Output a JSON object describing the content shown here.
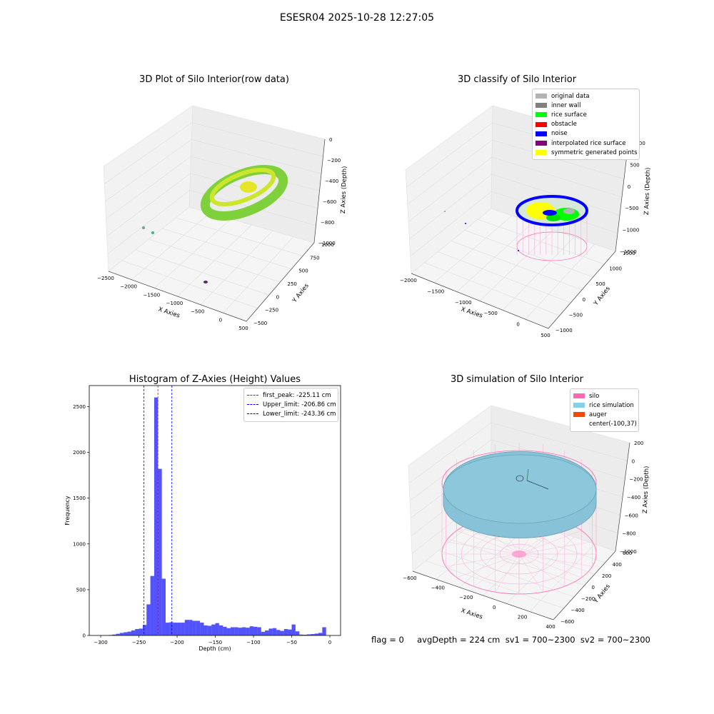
{
  "suptitle": "ESESR04 2025-10-28 12:27:05",
  "footer": "flag = 0     avgDepth = 224 cm  sv1 = 700~2300  sv2 = 700~2300",
  "panels": {
    "raw": {
      "title": "3D Plot of Silo Interior(row data)",
      "xlabel": "X Axies",
      "ylabel": "Y Axies",
      "zlabel": "Z Axies (Depth)",
      "xticks": [
        "−2500",
        "−2000",
        "−1500",
        "−1000",
        "−500",
        "0",
        "500"
      ],
      "yticks": [
        "−500",
        "−250",
        "0",
        "250",
        "500",
        "750",
        "1000"
      ],
      "zticks": [
        "0",
        "−200",
        "−400",
        "−600",
        "−800",
        "−1000"
      ]
    },
    "classify": {
      "title": "3D classify of Silo Interior",
      "xlabel": "X Axies",
      "ylabel": "Y Axies",
      "zlabel": "Z Axies (Depth)",
      "xticks": [
        "−2000",
        "−1500",
        "−1000",
        "−500",
        "0",
        "500"
      ],
      "yticks": [
        "−1000",
        "−500",
        "0",
        "500",
        "1000",
        "1500"
      ],
      "zticks": [
        "1000",
        "500",
        "0",
        "−500",
        "−1000",
        "−1500"
      ],
      "legend": [
        {
          "label": "original data",
          "color": "#b3b3b3"
        },
        {
          "label": "inner wall",
          "color": "#808080"
        },
        {
          "label": "rice surface",
          "color": "#00ff00"
        },
        {
          "label": "obstacle",
          "color": "#ff0000"
        },
        {
          "label": "noise",
          "color": "#0000ff"
        },
        {
          "label": "interpolated rice surface",
          "color": "#800080"
        },
        {
          "label": "symmetric generated points",
          "color": "#ffff00"
        }
      ]
    },
    "simulation": {
      "title": "3D simulation of Silo Interior",
      "xlabel": "X Axies",
      "ylabel": "Y Axies",
      "zlabel": "Z Axies (Depth)",
      "xticks": [
        "−600",
        "−400",
        "−200",
        "0",
        "200",
        "400"
      ],
      "yticks": [
        "−600",
        "−400",
        "−200",
        "0",
        "200",
        "400",
        "600"
      ],
      "zticks": [
        "200",
        "0",
        "−200",
        "−400",
        "−600",
        "−800",
        "−1000"
      ],
      "legend": [
        {
          "label": "silo",
          "color": "#ff69b4"
        },
        {
          "label": "rice simulation",
          "color": "#87ceeb"
        },
        {
          "label": "auger",
          "color": "#ff4500"
        },
        {
          "label": "center(-100,37)",
          "color": ""
        }
      ]
    }
  },
  "chart_data": {
    "type": "bar",
    "title": "Histogram of Z-Axies (Height) Values",
    "xlabel": "Depth (cm)",
    "ylabel": "Frequency",
    "xlim": [
      -315,
      14
    ],
    "ylim": [
      0,
      2730
    ],
    "xticks": [
      -300,
      -250,
      -200,
      -150,
      -100,
      -50,
      0
    ],
    "yticks": [
      0,
      500,
      1000,
      1500,
      2000,
      2500
    ],
    "bin_width": 5,
    "bar_color": "#0000ff",
    "bins": [
      [
        -300,
        2
      ],
      [
        -295,
        3
      ],
      [
        -290,
        5
      ],
      [
        -285,
        10
      ],
      [
        -280,
        18
      ],
      [
        -275,
        28
      ],
      [
        -270,
        35
      ],
      [
        -265,
        42
      ],
      [
        -260,
        55
      ],
      [
        -255,
        70
      ],
      [
        -250,
        75
      ],
      [
        -245,
        115
      ],
      [
        -240,
        340
      ],
      [
        -235,
        650
      ],
      [
        -230,
        2600
      ],
      [
        -225,
        1820
      ],
      [
        -220,
        620
      ],
      [
        -215,
        140
      ],
      [
        -210,
        145
      ],
      [
        -205,
        140
      ],
      [
        -200,
        140
      ],
      [
        -195,
        140
      ],
      [
        -190,
        170
      ],
      [
        -185,
        170
      ],
      [
        -180,
        160
      ],
      [
        -175,
        160
      ],
      [
        -170,
        140
      ],
      [
        -165,
        110
      ],
      [
        -160,
        105
      ],
      [
        -155,
        120
      ],
      [
        -150,
        135
      ],
      [
        -145,
        110
      ],
      [
        -140,
        95
      ],
      [
        -135,
        80
      ],
      [
        -130,
        90
      ],
      [
        -125,
        90
      ],
      [
        -120,
        85
      ],
      [
        -115,
        90
      ],
      [
        -110,
        85
      ],
      [
        -105,
        100
      ],
      [
        -100,
        95
      ],
      [
        -95,
        90
      ],
      [
        -90,
        40
      ],
      [
        -85,
        55
      ],
      [
        -80,
        75
      ],
      [
        -75,
        80
      ],
      [
        -70,
        60
      ],
      [
        -65,
        50
      ],
      [
        -60,
        70
      ],
      [
        -55,
        65
      ],
      [
        -50,
        120
      ],
      [
        -45,
        45
      ],
      [
        -40,
        10
      ],
      [
        -35,
        8
      ],
      [
        -30,
        12
      ],
      [
        -25,
        15
      ],
      [
        -20,
        20
      ],
      [
        -15,
        28
      ],
      [
        -10,
        90
      ]
    ],
    "lines": [
      {
        "label": "first_peak: -225.11 cm",
        "x": -225.11,
        "color": "#ff0000"
      },
      {
        "label": "Upper_limit: -206.86 cm",
        "x": -206.86,
        "color": "#0000ff"
      },
      {
        "label": "Lower_limit: -243.36 cm",
        "x": -243.36,
        "color": "#0000ff"
      }
    ]
  }
}
